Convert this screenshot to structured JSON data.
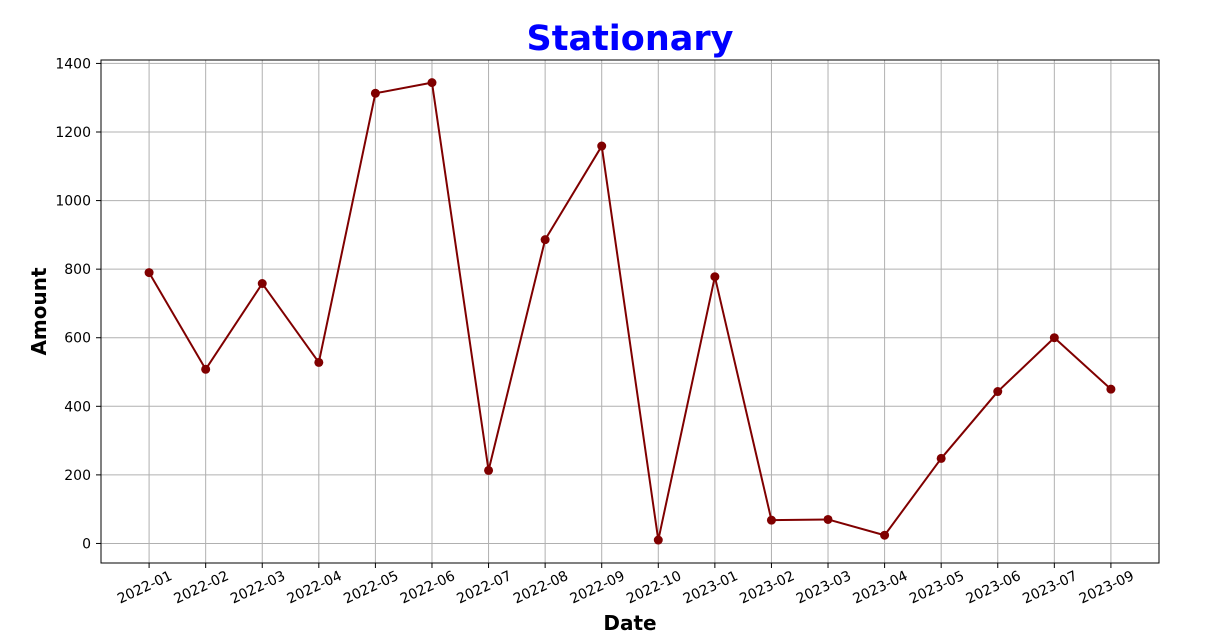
{
  "chart_data": {
    "type": "line",
    "title": "Stationary",
    "xlabel": "Date",
    "ylabel": "Amount",
    "categories": [
      "2022-01",
      "2022-02",
      "2022-03",
      "2022-04",
      "2022-05",
      "2022-06",
      "2022-07",
      "2022-08",
      "2022-09",
      "2022-10",
      "2023-01",
      "2023-02",
      "2023-03",
      "2023-04",
      "2023-05",
      "2023-06",
      "2023-07",
      "2023-09"
    ],
    "series": [
      {
        "values": [
          790,
          508,
          758,
          528,
          1313,
          1344,
          213,
          886,
          1159,
          10,
          778,
          68,
          70,
          24,
          248,
          443,
          600,
          450
        ]
      }
    ],
    "ylim": [
      -57,
      1410
    ],
    "yticks": [
      0,
      200,
      400,
      600,
      800,
      1000,
      1200,
      1400
    ],
    "grid": true,
    "colors": {
      "series": "#800000",
      "title": "#0000ff",
      "grid": "#b0b0b0"
    }
  }
}
